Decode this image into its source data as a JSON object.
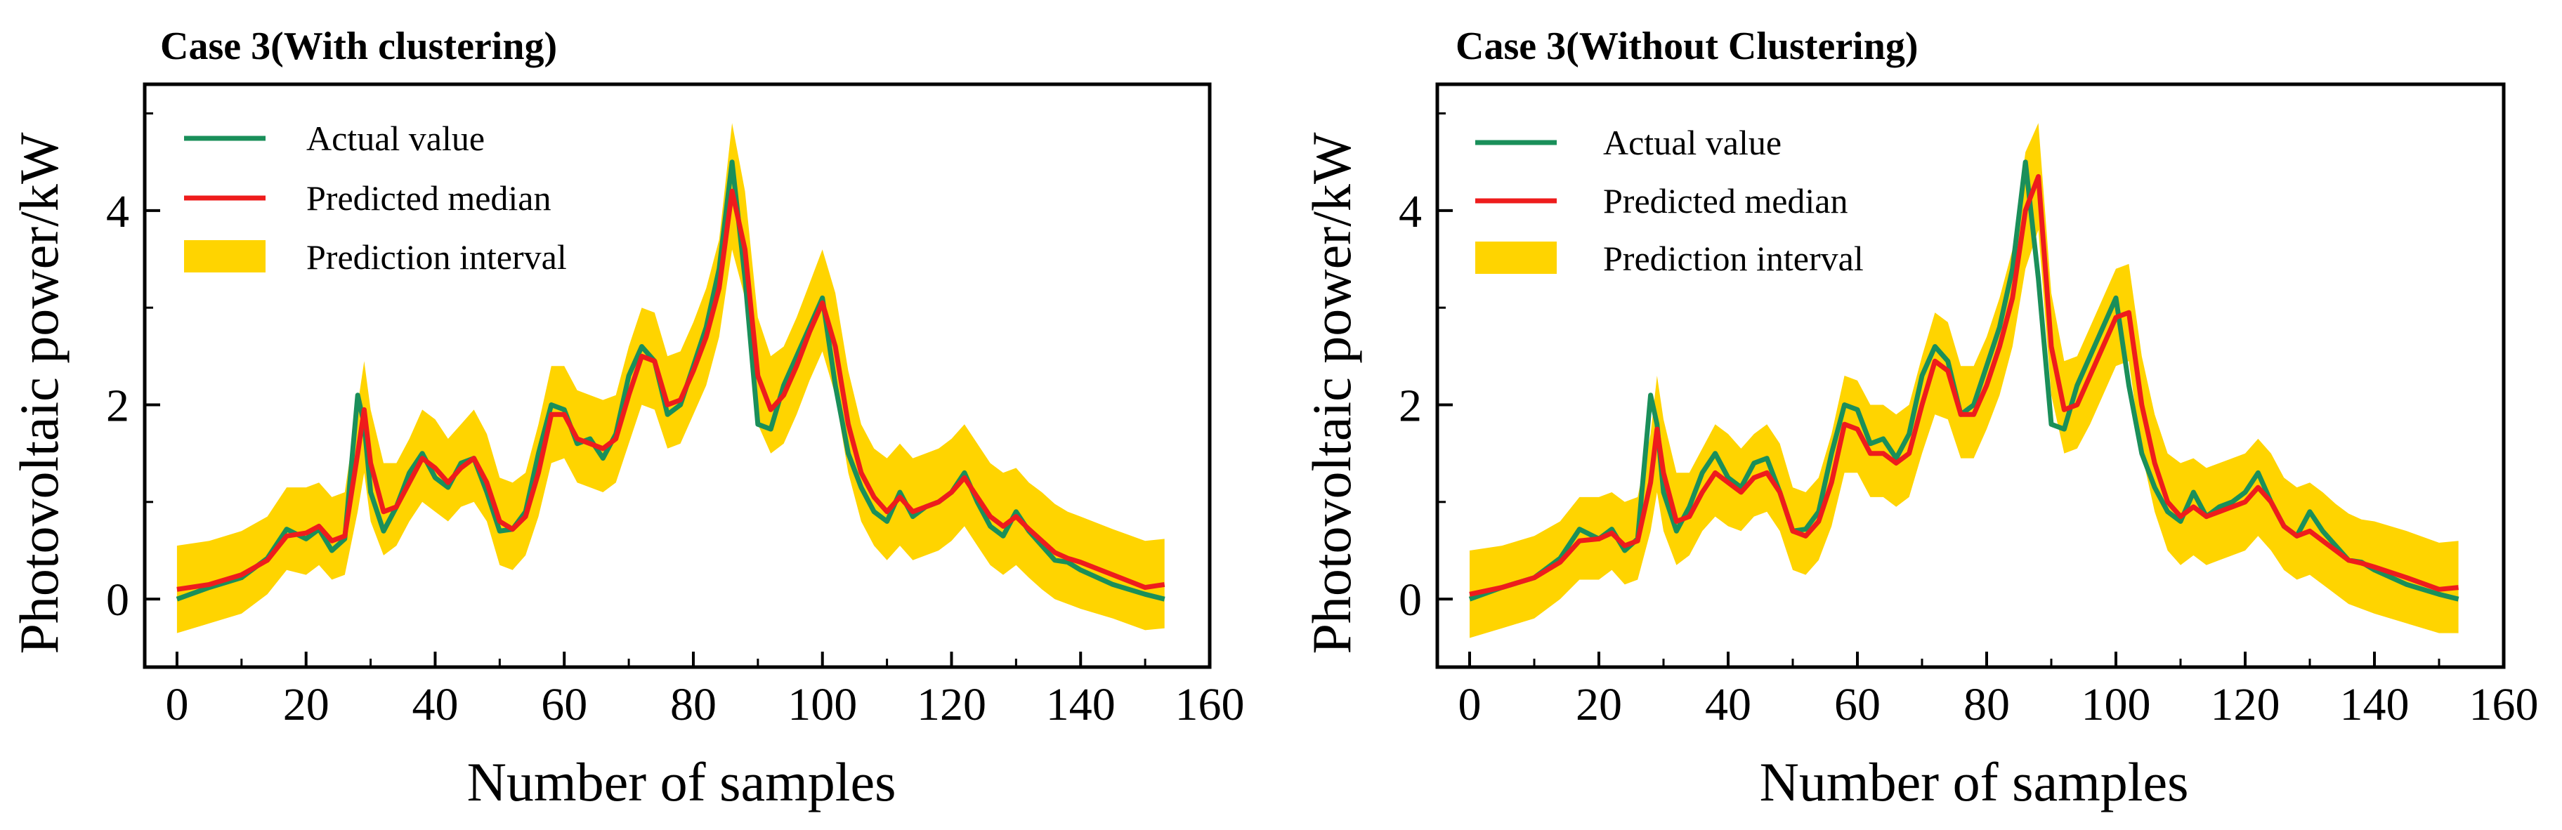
{
  "colors": {
    "actual": "#1a8f5a",
    "predicted": "#ee1c1c",
    "interval": "#ffd400"
  },
  "chart_data": [
    {
      "type": "line",
      "title": "Case 3(With clustering)",
      "xlabel": "Number of samples",
      "ylabel": "Photovoltaic power/kW",
      "xlim": [
        -5,
        160
      ],
      "ylim": [
        -0.7,
        5.3
      ],
      "xticks": [
        "0",
        "20",
        "40",
        "60",
        "80",
        "100",
        "120",
        "140",
        "160"
      ],
      "yticks": [
        "0",
        "2",
        "4"
      ],
      "legend": {
        "position": "top-left",
        "actual_label": "Actual value",
        "predicted_label": "Predicted median",
        "interval_label": "Prediction interval"
      },
      "x": [
        0,
        5,
        10,
        14,
        17,
        20,
        22,
        24,
        26,
        28,
        29,
        30,
        32,
        34,
        36,
        38,
        40,
        42,
        44,
        46,
        48,
        50,
        52,
        54,
        56,
        58,
        60,
        62,
        64,
        66,
        68,
        70,
        72,
        74,
        76,
        78,
        80,
        82,
        84,
        86,
        88,
        90,
        92,
        94,
        96,
        98,
        100,
        102,
        104,
        106,
        108,
        110,
        112,
        114,
        116,
        118,
        120,
        122,
        124,
        126,
        128,
        130,
        132,
        134,
        136,
        138,
        140,
        145,
        150,
        153
      ],
      "series": [
        {
          "name": "Actual value",
          "values": [
            0.0,
            0.12,
            0.22,
            0.42,
            0.72,
            0.62,
            0.72,
            0.5,
            0.62,
            2.1,
            1.8,
            1.1,
            0.7,
            0.95,
            1.3,
            1.5,
            1.25,
            1.15,
            1.4,
            1.45,
            1.1,
            0.7,
            0.72,
            0.9,
            1.5,
            2.0,
            1.95,
            1.6,
            1.65,
            1.45,
            1.7,
            2.3,
            2.6,
            2.45,
            1.9,
            2.0,
            2.4,
            2.8,
            3.4,
            4.5,
            3.3,
            1.8,
            1.75,
            2.2,
            2.5,
            2.8,
            3.1,
            2.2,
            1.5,
            1.15,
            0.9,
            0.8,
            1.1,
            0.85,
            0.95,
            1.0,
            1.1,
            1.3,
            1.0,
            0.75,
            0.65,
            0.9,
            0.7,
            0.55,
            0.4,
            0.38,
            0.3,
            0.15,
            0.05,
            0.0
          ]
        },
        {
          "name": "Predicted median",
          "values": [
            0.1,
            0.15,
            0.25,
            0.4,
            0.65,
            0.68,
            0.75,
            0.6,
            0.65,
            1.5,
            1.95,
            1.4,
            0.9,
            0.95,
            1.2,
            1.45,
            1.35,
            1.2,
            1.35,
            1.45,
            1.2,
            0.8,
            0.72,
            0.85,
            1.3,
            1.9,
            1.9,
            1.65,
            1.6,
            1.55,
            1.65,
            2.1,
            2.5,
            2.45,
            2.0,
            2.05,
            2.35,
            2.7,
            3.2,
            4.2,
            3.6,
            2.3,
            1.95,
            2.1,
            2.4,
            2.75,
            3.05,
            2.6,
            1.8,
            1.3,
            1.05,
            0.9,
            1.05,
            0.9,
            0.95,
            1.0,
            1.1,
            1.25,
            1.05,
            0.85,
            0.75,
            0.85,
            0.72,
            0.6,
            0.48,
            0.42,
            0.38,
            0.25,
            0.12,
            0.15
          ]
        }
      ],
      "interval": {
        "lower": [
          -0.35,
          -0.25,
          -0.15,
          0.05,
          0.3,
          0.25,
          0.35,
          0.2,
          0.25,
          0.9,
          1.3,
          0.8,
          0.45,
          0.55,
          0.8,
          1.0,
          0.9,
          0.8,
          0.95,
          1.0,
          0.8,
          0.35,
          0.3,
          0.45,
          0.85,
          1.4,
          1.45,
          1.2,
          1.15,
          1.1,
          1.2,
          1.6,
          2.0,
          1.95,
          1.55,
          1.6,
          1.9,
          2.2,
          2.7,
          3.6,
          3.1,
          1.8,
          1.5,
          1.6,
          1.9,
          2.25,
          2.55,
          2.1,
          1.3,
          0.8,
          0.55,
          0.4,
          0.55,
          0.4,
          0.45,
          0.5,
          0.6,
          0.75,
          0.55,
          0.35,
          0.25,
          0.35,
          0.22,
          0.1,
          0.0,
          -0.05,
          -0.1,
          -0.2,
          -0.32,
          -0.3
        ],
        "upper": [
          0.55,
          0.6,
          0.7,
          0.85,
          1.15,
          1.15,
          1.2,
          1.05,
          1.1,
          2.0,
          2.45,
          1.95,
          1.4,
          1.4,
          1.65,
          1.95,
          1.85,
          1.65,
          1.8,
          1.95,
          1.7,
          1.25,
          1.2,
          1.3,
          1.8,
          2.4,
          2.4,
          2.15,
          2.1,
          2.05,
          2.1,
          2.6,
          3.0,
          2.95,
          2.5,
          2.55,
          2.85,
          3.2,
          3.7,
          4.9,
          4.2,
          2.9,
          2.5,
          2.6,
          2.9,
          3.25,
          3.6,
          3.15,
          2.35,
          1.8,
          1.55,
          1.45,
          1.6,
          1.45,
          1.5,
          1.55,
          1.65,
          1.8,
          1.6,
          1.4,
          1.3,
          1.35,
          1.2,
          1.1,
          0.98,
          0.9,
          0.85,
          0.72,
          0.6,
          0.62
        ]
      }
    },
    {
      "type": "line",
      "title": "Case 3(Without Clustering)",
      "xlabel": "Number of samples",
      "ylabel": "Photovoltaic power/kW",
      "xlim": [
        -5,
        160
      ],
      "ylim": [
        -0.7,
        5.3
      ],
      "xticks": [
        "0",
        "20",
        "40",
        "60",
        "80",
        "100",
        "120",
        "140",
        "160"
      ],
      "yticks": [
        "0",
        "2",
        "4"
      ],
      "legend": {
        "position": "top-left",
        "actual_label": "Actual value",
        "predicted_label": "Predicted median",
        "interval_label": "Prediction interval"
      },
      "x": [
        0,
        5,
        10,
        14,
        17,
        20,
        22,
        24,
        26,
        28,
        29,
        30,
        32,
        34,
        36,
        38,
        40,
        42,
        44,
        46,
        48,
        50,
        52,
        54,
        56,
        58,
        60,
        62,
        64,
        66,
        68,
        70,
        72,
        74,
        76,
        78,
        80,
        82,
        84,
        86,
        88,
        90,
        92,
        94,
        96,
        98,
        100,
        102,
        104,
        106,
        108,
        110,
        112,
        114,
        116,
        118,
        120,
        122,
        124,
        126,
        128,
        130,
        132,
        134,
        136,
        138,
        140,
        145,
        150,
        153
      ],
      "series": [
        {
          "name": "Actual value",
          "values": [
            0.0,
            0.12,
            0.22,
            0.42,
            0.72,
            0.62,
            0.72,
            0.5,
            0.62,
            2.1,
            1.8,
            1.1,
            0.7,
            0.95,
            1.3,
            1.5,
            1.25,
            1.15,
            1.4,
            1.45,
            1.1,
            0.7,
            0.72,
            0.9,
            1.5,
            2.0,
            1.95,
            1.6,
            1.65,
            1.45,
            1.7,
            2.3,
            2.6,
            2.45,
            1.9,
            2.0,
            2.4,
            2.8,
            3.4,
            4.5,
            3.3,
            1.8,
            1.75,
            2.2,
            2.5,
            2.8,
            3.1,
            2.2,
            1.5,
            1.15,
            0.9,
            0.8,
            1.1,
            0.85,
            0.95,
            1.0,
            1.1,
            1.3,
            1.0,
            0.75,
            0.65,
            0.9,
            0.7,
            0.55,
            0.4,
            0.38,
            0.3,
            0.15,
            0.05,
            0.0
          ]
        },
        {
          "name": "Predicted median",
          "values": [
            0.05,
            0.12,
            0.22,
            0.38,
            0.6,
            0.62,
            0.68,
            0.55,
            0.6,
            1.2,
            1.75,
            1.3,
            0.8,
            0.85,
            1.1,
            1.3,
            1.2,
            1.1,
            1.25,
            1.3,
            1.1,
            0.7,
            0.65,
            0.8,
            1.2,
            1.8,
            1.75,
            1.5,
            1.5,
            1.4,
            1.5,
            2.0,
            2.45,
            2.35,
            1.9,
            1.9,
            2.2,
            2.6,
            3.1,
            4.0,
            4.35,
            2.6,
            1.95,
            2.0,
            2.3,
            2.6,
            2.9,
            2.95,
            2.0,
            1.4,
            1.0,
            0.85,
            0.95,
            0.85,
            0.9,
            0.95,
            1.0,
            1.15,
            1.0,
            0.75,
            0.65,
            0.7,
            0.6,
            0.5,
            0.4,
            0.37,
            0.33,
            0.22,
            0.1,
            0.12
          ]
        }
      ],
      "interval": {
        "lower": [
          -0.4,
          -0.3,
          -0.2,
          0.0,
          0.2,
          0.2,
          0.3,
          0.15,
          0.2,
          0.7,
          1.1,
          0.7,
          0.35,
          0.45,
          0.7,
          0.85,
          0.75,
          0.7,
          0.85,
          0.9,
          0.7,
          0.3,
          0.25,
          0.4,
          0.75,
          1.3,
          1.3,
          1.05,
          1.05,
          0.95,
          1.05,
          1.5,
          1.9,
          1.85,
          1.45,
          1.45,
          1.75,
          2.1,
          2.6,
          3.4,
          3.8,
          2.1,
          1.5,
          1.55,
          1.8,
          2.1,
          2.4,
          2.45,
          1.5,
          0.9,
          0.5,
          0.35,
          0.45,
          0.35,
          0.4,
          0.45,
          0.5,
          0.65,
          0.5,
          0.3,
          0.2,
          0.25,
          0.15,
          0.05,
          -0.05,
          -0.1,
          -0.15,
          -0.25,
          -0.35,
          -0.35
        ],
        "upper": [
          0.5,
          0.55,
          0.65,
          0.8,
          1.05,
          1.05,
          1.1,
          1.0,
          1.05,
          1.7,
          2.3,
          1.85,
          1.3,
          1.3,
          1.55,
          1.8,
          1.7,
          1.55,
          1.7,
          1.8,
          1.6,
          1.15,
          1.1,
          1.25,
          1.7,
          2.3,
          2.25,
          2.0,
          2.0,
          1.9,
          2.0,
          2.5,
          2.95,
          2.85,
          2.4,
          2.4,
          2.7,
          3.1,
          3.6,
          4.6,
          4.9,
          3.15,
          2.45,
          2.5,
          2.8,
          3.1,
          3.4,
          3.45,
          2.5,
          1.9,
          1.5,
          1.4,
          1.45,
          1.35,
          1.4,
          1.45,
          1.5,
          1.65,
          1.5,
          1.25,
          1.15,
          1.2,
          1.1,
          0.98,
          0.88,
          0.82,
          0.8,
          0.7,
          0.58,
          0.6
        ]
      }
    }
  ]
}
